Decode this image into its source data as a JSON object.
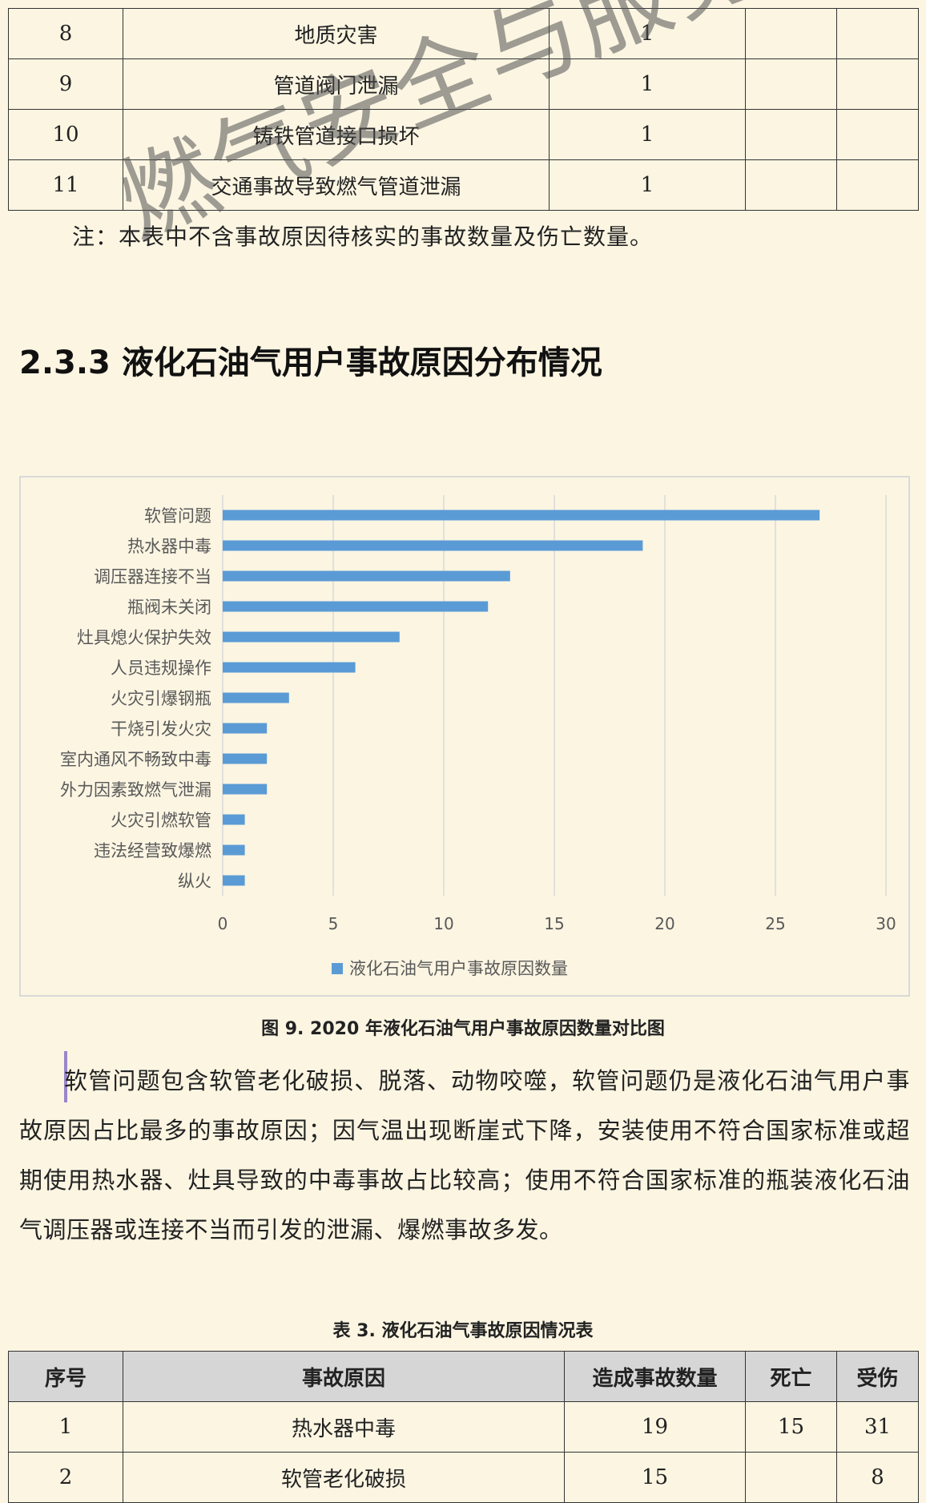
{
  "top_table": {
    "rows": [
      {
        "no": "8",
        "cause": "地质灾害",
        "count": "1",
        "deaths": "",
        "injuries": ""
      },
      {
        "no": "9",
        "cause": "管道阀门泄漏",
        "count": "1",
        "deaths": "",
        "injuries": ""
      },
      {
        "no": "10",
        "cause": "铸铁管道接口损坏",
        "count": "1",
        "deaths": "",
        "injuries": ""
      },
      {
        "no": "11",
        "cause": "交通事故导致燃气管道泄漏",
        "count": "1",
        "deaths": "",
        "injuries": ""
      }
    ]
  },
  "note": "注：本表中不含事故原因待核实的事故数量及伤亡数量。",
  "watermark": "燃气安全与服务",
  "section_heading": "2.3.3 液化石油气用户事故原因分布情况",
  "chart_data": {
    "type": "bar",
    "orientation": "horizontal",
    "categories": [
      "软管问题",
      "热水器中毒",
      "调压器连接不当",
      "瓶阀未关闭",
      "灶具熄火保护失效",
      "人员违规操作",
      "火灾引爆钢瓶",
      "干烧引发火灾",
      "室内通风不畅致中毒",
      "外力因素致燃气泄漏",
      "火灾引燃软管",
      "违法经营致爆燃",
      "纵火"
    ],
    "series": [
      {
        "name": "液化石油气用户事故原因数量",
        "values": [
          27,
          19,
          13,
          12,
          8,
          6,
          3,
          2,
          2,
          2,
          1,
          1,
          1
        ]
      }
    ],
    "xlim": [
      0,
      30
    ],
    "xticks": [
      0,
      5,
      10,
      15,
      20,
      25,
      30
    ],
    "grid": true,
    "legend": "bottom",
    "color": "#5b9bd5"
  },
  "figure_caption": "图 9.  2020 年液化石油气用户事故原因数量对比图",
  "paragraph": "软管问题包含软管老化破损、脱落、动物咬噬，软管问题仍是液化石油气用户事故原因占比最多的事故原因；因气温出现断崖式下降，安装使用不符合国家标准或超期使用热水器、灶具导致的中毒事故占比较高；使用不符合国家标准的瓶装液化石油气调压器或连接不当而引发的泄漏、爆燃事故多发。",
  "table_caption": "表 3.  液化石油气事故原因情况表",
  "bottom_table": {
    "headers": {
      "no": "序号",
      "cause": "事故原因",
      "count": "造成事故数量",
      "deaths": "死亡",
      "injuries": "受伤"
    },
    "rows": [
      {
        "no": "1",
        "cause": "热水器中毒",
        "count": "19",
        "deaths": "15",
        "injuries": "31"
      },
      {
        "no": "2",
        "cause": "软管老化破损",
        "count": "15",
        "deaths": "",
        "injuries": "8"
      }
    ]
  }
}
